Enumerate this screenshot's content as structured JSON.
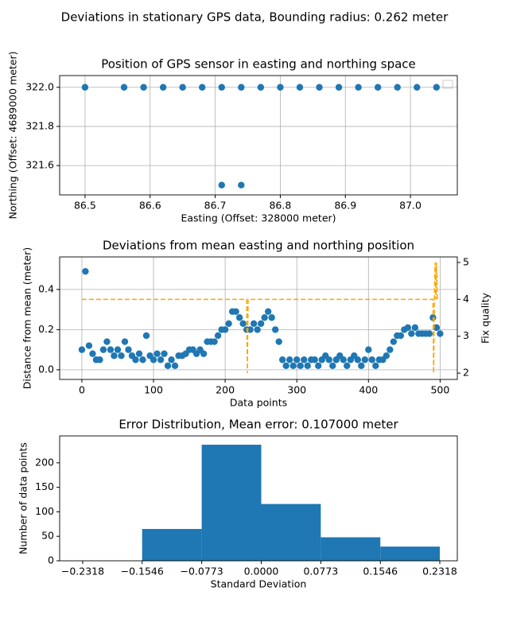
{
  "title": "Deviations in stationary GPS data, Bounding radius: 0.262 meter",
  "chart_data": [
    {
      "type": "scatter",
      "title": "Position of GPS sensor in easting and northing space",
      "xlabel": "Easting (Offset: 328000 meter)",
      "ylabel": "Northing (Offset: 4689000 meter)",
      "x": [
        86.5,
        86.56,
        86.59,
        86.62,
        86.65,
        86.68,
        86.71,
        86.74,
        86.77,
        86.8,
        86.83,
        86.86,
        86.89,
        86.92,
        86.95,
        86.98,
        87.01,
        87.04,
        86.71,
        86.74
      ],
      "series": [
        {
          "color": "#1f77b4",
          "values": [
            322,
            322,
            322,
            322,
            322,
            322,
            322,
            322,
            322,
            322,
            322,
            322,
            322,
            322,
            322,
            322,
            322,
            322,
            321.5,
            321.5
          ]
        }
      ],
      "xlim": [
        86.461,
        87.072
      ],
      "ylim": [
        321.45,
        322.06
      ],
      "xticks": [
        86.5,
        86.6,
        86.7,
        86.8,
        86.9,
        {
          "value": 87,
          "label": "87.0"
        }
      ],
      "yticks": [
        321.6,
        321.8,
        {
          "value": 322,
          "label": "322.0"
        }
      ],
      "grid": true
    },
    {
      "type": "scatter",
      "title": "Deviations from mean easting and northing position",
      "xlabel": "Data points",
      "ylabel": "Distance from mean (meter)",
      "y2label": "Fix quality",
      "series": [
        {
          "color": "#1f77b4",
          "x": [
            0,
            5,
            10,
            15,
            20,
            25,
            30,
            35,
            40,
            45,
            50,
            55,
            60,
            65,
            70,
            75,
            80,
            85,
            90,
            95,
            100,
            105,
            110,
            115,
            120,
            125,
            130,
            135,
            140,
            145,
            150,
            155,
            160,
            165,
            170,
            175,
            180,
            185,
            190,
            195,
            200,
            205,
            210,
            215,
            220,
            225,
            230,
            235,
            240,
            245,
            250,
            255,
            260,
            265,
            270,
            275,
            280,
            285,
            290,
            295,
            300,
            305,
            310,
            315,
            320,
            325,
            330,
            335,
            340,
            345,
            350,
            355,
            360,
            365,
            370,
            375,
            380,
            385,
            390,
            395,
            400,
            405,
            410,
            415,
            420,
            425,
            430,
            435,
            440,
            445,
            450,
            455,
            460,
            465,
            470,
            475,
            480,
            485,
            490,
            495,
            500
          ],
          "values": [
            0.1,
            0.49,
            0.12,
            0.08,
            0.05,
            0.05,
            0.1,
            0.14,
            0.1,
            0.07,
            0.1,
            0.07,
            0.14,
            0.1,
            0.07,
            0.05,
            0.08,
            0.05,
            0.17,
            0.07,
            0.05,
            0.08,
            0.05,
            0.08,
            0.02,
            0.05,
            0.02,
            0.07,
            0.07,
            0.08,
            0.1,
            0.1,
            0.08,
            0.1,
            0.08,
            0.14,
            0.14,
            0.14,
            0.17,
            0.2,
            0.2,
            0.23,
            0.29,
            0.29,
            0.26,
            0.23,
            0.2,
            0.2,
            0.23,
            0.2,
            0.23,
            0.26,
            0.29,
            0.26,
            0.2,
            0.14,
            0.05,
            0.02,
            0.05,
            0.02,
            0.05,
            0.02,
            0.05,
            0.02,
            0.05,
            0.05,
            0.02,
            0.05,
            0.07,
            0.05,
            0.02,
            0.05,
            0.07,
            0.05,
            0.02,
            0.05,
            0.07,
            0.05,
            0.02,
            0.05,
            0.1,
            0.05,
            0.02,
            0.05,
            0.05,
            0.07,
            0.1,
            0.14,
            0.17,
            0.17,
            0.2,
            0.21,
            0.18,
            0.21,
            0.18,
            0.18,
            0.18,
            0.18,
            0.26,
            0.21,
            0.18
          ]
        },
        {
          "color": "#ffa500",
          "axis": "y2",
          "style": "dashed",
          "x": [
            0,
            230,
            231,
            232,
            233,
            490,
            491,
            492,
            493,
            494,
            495,
            496,
            497,
            498,
            499
          ],
          "values": [
            4,
            4,
            2,
            4,
            4,
            4,
            2,
            4,
            5,
            4,
            5,
            4,
            4,
            4,
            4
          ]
        }
      ],
      "xlim": [
        -31,
        524
      ],
      "ylim": [
        -0.048,
        0.562
      ],
      "y2lim": [
        1.83,
        5.15
      ],
      "xticks": [
        0,
        100,
        200,
        300,
        400,
        500
      ],
      "yticks": [
        {
          "value": 0,
          "label": "0.0"
        },
        0.2,
        0.4
      ],
      "y2ticks": [
        2,
        3,
        4,
        5
      ],
      "grid": true
    },
    {
      "type": "histogram",
      "title": "Error Distribution, Mean error: 0.107000 meter",
      "xlabel": "Standard Deviation",
      "ylabel": "Number of data points",
      "bins": [
        -0.2318,
        -0.1546,
        -0.0773,
        0,
        0.0773,
        0.1546,
        0.2318
      ],
      "values": [
        0,
        65,
        237,
        116,
        48,
        29
      ],
      "color": "#1f77b4",
      "xlim": [
        -0.2617,
        0.2545
      ],
      "ylim": [
        0,
        255
      ],
      "xticks": [
        {
          "value": -0.2318,
          "label": "−0.2318"
        },
        {
          "value": -0.1546,
          "label": "−0.1546"
        },
        {
          "value": -0.0773,
          "label": "−0.0773"
        },
        {
          "value": 0,
          "label": "0.0000"
        },
        {
          "value": 0.0773,
          "label": "0.0773"
        },
        {
          "value": 0.1546,
          "label": "0.1546"
        },
        {
          "value": 0.2318,
          "label": "0.2318"
        }
      ],
      "yticks": [
        0,
        50,
        100,
        150,
        200
      ],
      "grid": false
    }
  ]
}
